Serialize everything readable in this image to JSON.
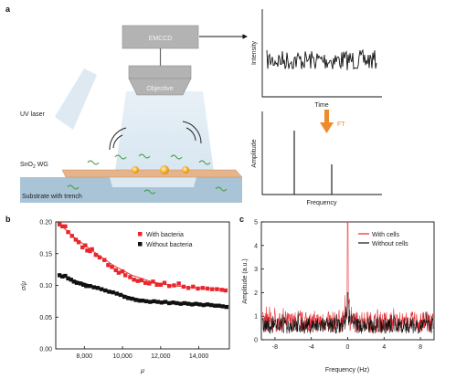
{
  "panel_a": {
    "label": "a",
    "emccd_label": "EMCCD",
    "objective_label": "Objective",
    "uv_laser_label": "UV laser",
    "waveguide_label_main": "SnO",
    "waveguide_label_sub": "2",
    "waveguide_label_suffix": " WG",
    "substrate_label": "Substrate with trench",
    "time_plot": {
      "ylabel": "Intensity",
      "xlabel": "Time"
    },
    "freq_plot": {
      "ylabel": "Amplitude",
      "xlabel": "Frequency",
      "ft_label": "FT"
    },
    "colors": {
      "box_gray": "#b3b3b3",
      "beam_blue": "#cfe1ee",
      "arrow_orange": "#ef8b2c",
      "substrate": "#a9c4d6",
      "waveguide": "#e6b48a",
      "bacteria": "#3e9a3e",
      "particle": "#f4b334"
    }
  },
  "panel_b": {
    "label": "b",
    "xlabel": "μ",
    "ylabel": "σ/μ",
    "xticks": [
      "8,000",
      "10,000",
      "12,000",
      "14,000"
    ],
    "yticks": [
      "0.00",
      "0.05",
      "0.10",
      "0.15",
      "0.20"
    ],
    "colors": {
      "with": "#e8262b",
      "without": "#111111"
    },
    "chart_data": {
      "type": "scatter",
      "xlabel": "μ",
      "ylabel": "σ/μ",
      "xlim": [
        6500,
        15600
      ],
      "ylim": [
        0,
        0.2
      ],
      "grid": false,
      "legend": "top-right",
      "series": [
        {
          "name": "With bacteria",
          "points": [
            [
              6700,
              0.196
            ],
            [
              6850,
              0.193
            ],
            [
              7000,
              0.193
            ],
            [
              7150,
              0.184
            ],
            [
              7350,
              0.178
            ],
            [
              7550,
              0.172
            ],
            [
              7700,
              0.168
            ],
            [
              7900,
              0.16
            ],
            [
              8050,
              0.163
            ],
            [
              8150,
              0.155
            ],
            [
              8300,
              0.154
            ],
            [
              8400,
              0.157
            ],
            [
              8600,
              0.148
            ],
            [
              8800,
              0.144
            ],
            [
              9050,
              0.14
            ],
            [
              9250,
              0.132
            ],
            [
              9450,
              0.129
            ],
            [
              9650,
              0.124
            ],
            [
              9800,
              0.12
            ],
            [
              10000,
              0.122
            ],
            [
              10150,
              0.116
            ],
            [
              10400,
              0.113
            ],
            [
              10600,
              0.109
            ],
            [
              10800,
              0.107
            ],
            [
              11000,
              0.108
            ],
            [
              11200,
              0.104
            ],
            [
              11400,
              0.103
            ],
            [
              11600,
              0.106
            ],
            [
              11800,
              0.101
            ],
            [
              12000,
              0.101
            ],
            [
              12200,
              0.104
            ],
            [
              12450,
              0.099
            ],
            [
              12700,
              0.1
            ],
            [
              12950,
              0.103
            ],
            [
              13200,
              0.098
            ],
            [
              13450,
              0.096
            ],
            [
              13700,
              0.098
            ],
            [
              13950,
              0.095
            ],
            [
              14200,
              0.096
            ],
            [
              14450,
              0.095
            ],
            [
              14700,
              0.094
            ],
            [
              14950,
              0.094
            ],
            [
              15200,
              0.093
            ],
            [
              15400,
              0.092
            ]
          ],
          "fit": [
            [
              6600,
              0.199
            ],
            [
              7500,
              0.175
            ],
            [
              8500,
              0.153
            ],
            [
              9500,
              0.132
            ],
            [
              10500,
              0.116
            ],
            [
              11500,
              0.106
            ],
            [
              12500,
              0.1
            ],
            [
              13500,
              0.097
            ],
            [
              14500,
              0.095
            ],
            [
              15500,
              0.094
            ]
          ]
        },
        {
          "name": "Without bacteria",
          "points": [
            [
              6700,
              0.116
            ],
            [
              6850,
              0.114
            ],
            [
              7000,
              0.115
            ],
            [
              7150,
              0.111
            ],
            [
              7300,
              0.109
            ],
            [
              7450,
              0.106
            ],
            [
              7600,
              0.104
            ],
            [
              7800,
              0.103
            ],
            [
              7950,
              0.101
            ],
            [
              8100,
              0.099
            ],
            [
              8300,
              0.099
            ],
            [
              8500,
              0.097
            ],
            [
              8700,
              0.096
            ],
            [
              8900,
              0.094
            ],
            [
              9100,
              0.092
            ],
            [
              9300,
              0.09
            ],
            [
              9500,
              0.089
            ],
            [
              9700,
              0.087
            ],
            [
              9900,
              0.085
            ],
            [
              10100,
              0.082
            ],
            [
              10300,
              0.08
            ],
            [
              10500,
              0.079
            ],
            [
              10700,
              0.077
            ],
            [
              10900,
              0.076
            ],
            [
              11050,
              0.076
            ],
            [
              11250,
              0.075
            ],
            [
              11450,
              0.074
            ],
            [
              11650,
              0.075
            ],
            [
              11850,
              0.074
            ],
            [
              12050,
              0.073
            ],
            [
              12250,
              0.074
            ],
            [
              12450,
              0.072
            ],
            [
              12650,
              0.073
            ],
            [
              12850,
              0.072
            ],
            [
              13050,
              0.071
            ],
            [
              13250,
              0.072
            ],
            [
              13450,
              0.071
            ],
            [
              13650,
              0.07
            ],
            [
              13850,
              0.071
            ],
            [
              14050,
              0.07
            ],
            [
              14250,
              0.069
            ],
            [
              14450,
              0.07
            ],
            [
              14650,
              0.069
            ],
            [
              14850,
              0.068
            ],
            [
              15050,
              0.068
            ],
            [
              15250,
              0.067
            ],
            [
              15450,
              0.066
            ]
          ],
          "fit": [
            [
              6600,
              0.118
            ],
            [
              7500,
              0.108
            ],
            [
              8500,
              0.099
            ],
            [
              9500,
              0.09
            ],
            [
              10500,
              0.081
            ],
            [
              11500,
              0.075
            ],
            [
              12500,
              0.073
            ],
            [
              13500,
              0.071
            ],
            [
              14500,
              0.069
            ],
            [
              15500,
              0.067
            ]
          ]
        }
      ]
    }
  },
  "panel_c": {
    "label": "c",
    "xlabel": "Frequency (Hz)",
    "ylabel": "Amplitude (a.u.)",
    "xticks": [
      "-8",
      "-4",
      "0",
      "4",
      "8"
    ],
    "yticks": [
      "0",
      "1",
      "2",
      "3",
      "4",
      "5"
    ],
    "colors": {
      "with": "#e8262b",
      "without": "#111111"
    },
    "chart_data": {
      "type": "line",
      "xlabel": "Frequency (Hz)",
      "ylabel": "Amplitude (a.u.)",
      "xlim": [
        -9.5,
        9.5
      ],
      "ylim": [
        0,
        5
      ],
      "grid": false,
      "legend": "top-right",
      "series": [
        {
          "name": "With cells",
          "noise_baseline": 0.3,
          "noise_span": 0.9,
          "peak_x": 0,
          "peak_y": 5.0
        },
        {
          "name": "Without cells",
          "noise_baseline": 0.25,
          "noise_span": 0.7,
          "peak_x": 0,
          "peak_y": 2.0
        }
      ]
    }
  }
}
